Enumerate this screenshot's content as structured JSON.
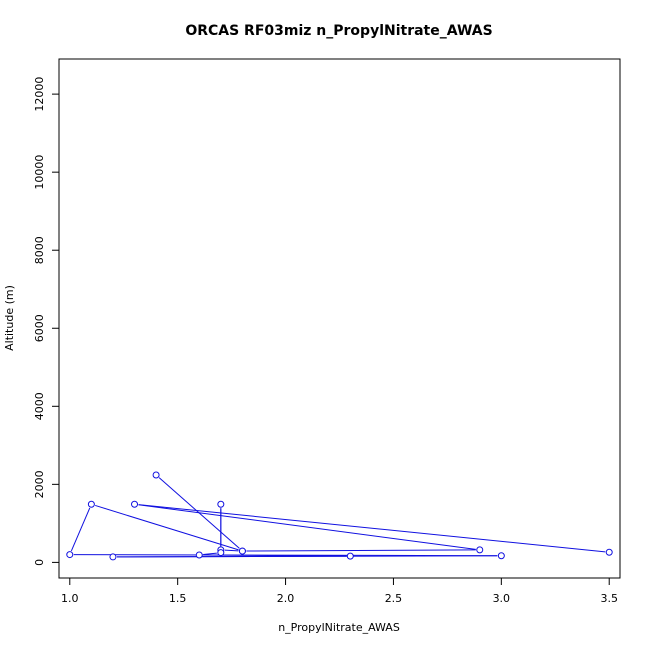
{
  "chart_data": {
    "type": "line",
    "title": "ORCAS RF03miz n_PropylNitrate_AWAS",
    "xlabel": "n_PropylNitrate_AWAS",
    "ylabel": "Altitude (m)",
    "xlim": [
      0.95,
      3.55
    ],
    "ylim": [
      -400,
      12900
    ],
    "xticks": [
      1.0,
      1.5,
      2.0,
      2.5,
      3.0,
      3.5
    ],
    "xtick_labels": [
      "1.0",
      "1.5",
      "2.0",
      "2.5",
      "3.0",
      "3.5"
    ],
    "yticks": [
      0,
      2000,
      4000,
      6000,
      8000,
      10000,
      12000
    ],
    "ytick_labels": [
      "0",
      "2000",
      "4000",
      "6000",
      "8000",
      "10000",
      "12000"
    ],
    "grid": false,
    "series": [
      {
        "color": "#1010e0",
        "markers": "open-circle",
        "points": [
          {
            "x": 1.4,
            "y": 2240
          },
          {
            "x": 1.8,
            "y": 290
          },
          {
            "x": 1.7,
            "y": 320
          },
          {
            "x": 1.7,
            "y": 1490
          },
          {
            "x": 1.7,
            "y": 250
          },
          {
            "x": 1.6,
            "y": 190
          },
          {
            "x": 2.3,
            "y": 160
          },
          {
            "x": 1.2,
            "y": 140
          },
          {
            "x": 3.0,
            "y": 170
          },
          {
            "x": 1.0,
            "y": 200
          },
          {
            "x": 1.1,
            "y": 1490
          },
          {
            "x": 1.8,
            "y": 290
          },
          {
            "x": 2.9,
            "y": 320
          },
          {
            "x": 1.3,
            "y": 1490
          },
          {
            "x": 3.5,
            "y": 260
          }
        ]
      }
    ]
  }
}
